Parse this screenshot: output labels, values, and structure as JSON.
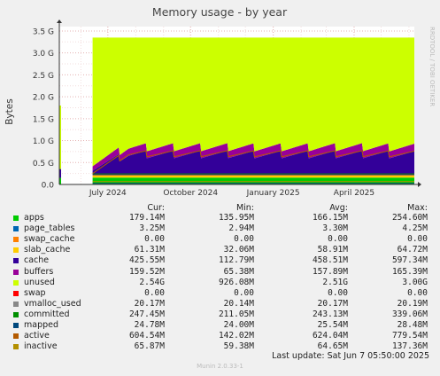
{
  "chart_data": {
    "type": "area",
    "title": "Memory usage - by year",
    "ylabel": "Bytes",
    "side_label": "RRDTOOL / TOBI OETIKER",
    "y_ticks": [
      "0.0",
      "0.5 G",
      "1.0 G",
      "1.5 G",
      "2.0 G",
      "2.5 G",
      "3.0 G",
      "3.5 G"
    ],
    "x_ticks": [
      "July 2024",
      "October 2024",
      "January 2025",
      "April 2025"
    ],
    "x_tick_dates": [
      "2024-07-01",
      "2024-10-01",
      "2025-01-01",
      "2025-04-01"
    ],
    "x_range": [
      "2024-05-08",
      "2025-06-07"
    ],
    "ylim_gb": [
      0,
      3.6
    ],
    "grid": true,
    "stack_order": [
      "apps",
      "page_tables",
      "swap_cache",
      "slab_cache",
      "cache",
      "buffers",
      "unused",
      "swap"
    ],
    "lines": [
      "committed",
      "mapped",
      "active",
      "inactive"
    ],
    "series": [
      {
        "name": "apps",
        "color": "#00cc00"
      },
      {
        "name": "page_tables",
        "color": "#0066b3"
      },
      {
        "name": "swap_cache",
        "color": "#ff8000"
      },
      {
        "name": "slab_cache",
        "color": "#ffcc00"
      },
      {
        "name": "cache",
        "color": "#330099"
      },
      {
        "name": "buffers",
        "color": "#990099"
      },
      {
        "name": "unused",
        "color": "#ccff00"
      },
      {
        "name": "swap",
        "color": "#ff0000"
      },
      {
        "name": "vmalloc_used",
        "color": "#888888"
      },
      {
        "name": "committed",
        "color": "#008f00"
      },
      {
        "name": "mapped",
        "color": "#00487d"
      },
      {
        "name": "active",
        "color": "#b35a00"
      },
      {
        "name": "inactive",
        "color": "#b38f00"
      }
    ]
  },
  "legend": {
    "headers": [
      "Cur:",
      "Min:",
      "Avg:",
      "Max:"
    ],
    "rows": [
      {
        "name": "apps",
        "color": "#00cc00",
        "cur": "179.14M",
        "min": "135.95M",
        "avg": "166.15M",
        "max": "254.60M"
      },
      {
        "name": "page_tables",
        "color": "#0066b3",
        "cur": "3.25M",
        "min": "2.94M",
        "avg": "3.30M",
        "max": "4.25M"
      },
      {
        "name": "swap_cache",
        "color": "#ff8000",
        "cur": "0.00",
        "min": "0.00",
        "avg": "0.00",
        "max": "0.00"
      },
      {
        "name": "slab_cache",
        "color": "#ffcc00",
        "cur": "61.31M",
        "min": "32.06M",
        "avg": "58.91M",
        "max": "64.72M"
      },
      {
        "name": "cache",
        "color": "#330099",
        "cur": "425.55M",
        "min": "112.79M",
        "avg": "458.51M",
        "max": "597.34M"
      },
      {
        "name": "buffers",
        "color": "#990099",
        "cur": "159.52M",
        "min": "65.38M",
        "avg": "157.89M",
        "max": "165.39M"
      },
      {
        "name": "unused",
        "color": "#ccff00",
        "cur": "2.54G",
        "min": "926.08M",
        "avg": "2.51G",
        "max": "3.00G"
      },
      {
        "name": "swap",
        "color": "#ff0000",
        "cur": "0.00",
        "min": "0.00",
        "avg": "0.00",
        "max": "0.00"
      },
      {
        "name": "vmalloc_used",
        "color": "#888888",
        "cur": "20.17M",
        "min": "20.14M",
        "avg": "20.17M",
        "max": "20.19M"
      },
      {
        "name": "committed",
        "color": "#008f00",
        "cur": "247.45M",
        "min": "211.05M",
        "avg": "243.13M",
        "max": "339.06M"
      },
      {
        "name": "mapped",
        "color": "#00487d",
        "cur": "24.78M",
        "min": "24.00M",
        "avg": "25.54M",
        "max": "28.48M"
      },
      {
        "name": "active",
        "color": "#b35a00",
        "cur": "604.54M",
        "min": "142.02M",
        "avg": "624.04M",
        "max": "779.54M"
      },
      {
        "name": "inactive",
        "color": "#b38f00",
        "cur": "65.87M",
        "min": "59.38M",
        "avg": "64.65M",
        "max": "137.36M"
      }
    ]
  },
  "last_update": "Last update:  Sat Jun  7 05:50:00 2025",
  "footer": "Munin 2.0.33-1"
}
